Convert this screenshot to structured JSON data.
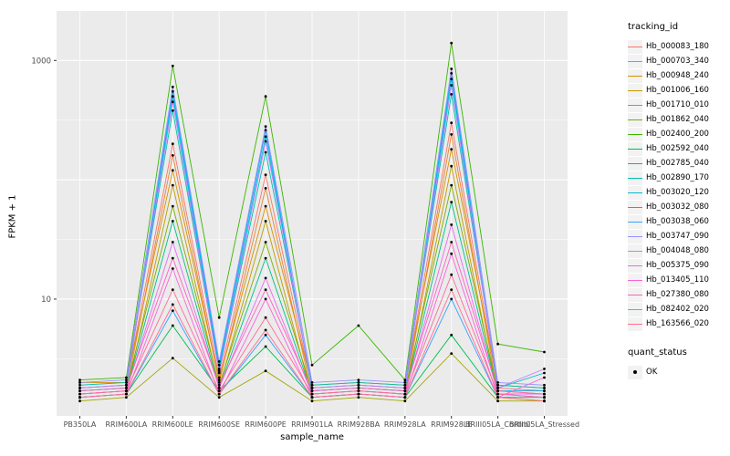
{
  "chart_data": {
    "type": "line",
    "title": "",
    "xlabel": "sample_name",
    "ylabel": "FPKM + 1",
    "y_scale": "log10",
    "ylim": [
      1.05,
      2600
    ],
    "grid": true,
    "panel_bg": "#EBEBEB",
    "grid_color": "#FFFFFF",
    "point_color": "#000000",
    "y_ticks": [
      {
        "value": 1000,
        "label": "1000"
      },
      {
        "value": 10,
        "label": "10"
      }
    ],
    "legend_title": "tracking_id",
    "legend2_title": "quant_status",
    "quant_status": [
      {
        "label": "OK",
        "marker": "point",
        "color": "#000000"
      }
    ],
    "categories": [
      "PB350LA",
      "RRIM600LA",
      "RRIM600LE",
      "RRIM600SE",
      "RRIM600PE",
      "RRIM901LA",
      "RRIM928BA",
      "RRIM928LA",
      "RRIM928LE",
      "BRIII05LA_Control",
      "BRIII05LA_Stressed"
    ],
    "series": [
      {
        "name": "Hb_000083_180",
        "color": "#F8766D",
        "values": [
          1.8,
          1.9,
          200,
          2.2,
          110,
          1.8,
          1.9,
          1.8,
          300,
          1.8,
          1.7
        ]
      },
      {
        "name": "Hb_000703_340",
        "color": "#EA8331",
        "values": [
          1.6,
          1.7,
          160,
          2.0,
          85,
          1.6,
          1.7,
          1.6,
          240,
          1.6,
          1.5
        ]
      },
      {
        "name": "Hb_000948_240",
        "color": "#D89000",
        "values": [
          2.0,
          2.0,
          120,
          2.1,
          60,
          1.9,
          2.0,
          1.9,
          180,
          1.9,
          1.8
        ]
      },
      {
        "name": "Hb_001006_160",
        "color": "#C09B00",
        "values": [
          1.5,
          1.6,
          90,
          1.8,
          45,
          1.5,
          1.6,
          1.5,
          130,
          1.5,
          1.4
        ]
      },
      {
        "name": "Hb_001710_010",
        "color": "#A3A500",
        "values": [
          1.4,
          1.5,
          3.2,
          1.5,
          2.5,
          1.4,
          1.5,
          1.4,
          3.5,
          1.4,
          1.4
        ]
      },
      {
        "name": "Hb_001862_040",
        "color": "#7CAE00",
        "values": [
          1.7,
          1.8,
          60,
          1.9,
          30,
          1.7,
          1.8,
          1.7,
          90,
          1.7,
          1.6
        ]
      },
      {
        "name": "Hb_002400_200",
        "color": "#39B600",
        "values": [
          2.1,
          2.2,
          900,
          7,
          500,
          2.8,
          6,
          2.1,
          1400,
          4.2,
          3.6
        ]
      },
      {
        "name": "Hb_002592_040",
        "color": "#00BB4E",
        "values": [
          1.5,
          1.6,
          6,
          1.7,
          4,
          1.5,
          1.6,
          1.5,
          5,
          1.5,
          1.5
        ]
      },
      {
        "name": "Hb_002785_040",
        "color": "#00C087",
        "values": [
          1.6,
          1.7,
          45,
          1.8,
          22,
          1.6,
          1.7,
          1.6,
          65,
          1.6,
          1.6
        ]
      },
      {
        "name": "Hb_002890_170",
        "color": "#00C0AF",
        "values": [
          1.9,
          2.0,
          380,
          2.5,
          170,
          1.9,
          2.0,
          1.9,
          520,
          1.9,
          1.8
        ]
      },
      {
        "name": "Hb_003020_120",
        "color": "#00BDD0",
        "values": [
          1.8,
          1.9,
          500,
          2.6,
          230,
          1.8,
          1.9,
          1.8,
          700,
          1.8,
          2.4
        ]
      },
      {
        "name": "Hb_003032_080",
        "color": "#00B4EF",
        "values": [
          1.7,
          1.8,
          550,
          2.8,
          260,
          1.7,
          1.8,
          1.7,
          780,
          1.7,
          1.7
        ]
      },
      {
        "name": "Hb_003038_060",
        "color": "#35A2FF",
        "values": [
          1.5,
          1.6,
          8,
          1.6,
          5,
          1.5,
          1.6,
          1.5,
          10,
          1.5,
          1.5
        ]
      },
      {
        "name": "Hb_003747_090",
        "color": "#9590FF",
        "values": [
          2.0,
          2.1,
          600,
          3.0,
          280,
          2.0,
          2.1,
          2.0,
          850,
          2.0,
          1.9
        ]
      },
      {
        "name": "Hb_004048_080",
        "color": "#C77CFF",
        "values": [
          1.8,
          1.9,
          450,
          2.4,
          210,
          1.8,
          1.9,
          1.8,
          620,
          1.8,
          2.6
        ]
      },
      {
        "name": "Hb_005375_090",
        "color": "#E76BF3",
        "values": [
          1.6,
          1.7,
          30,
          1.8,
          15,
          1.6,
          1.7,
          1.6,
          42,
          1.6,
          1.6
        ]
      },
      {
        "name": "Hb_013405_110",
        "color": "#FA62DB",
        "values": [
          1.5,
          1.6,
          18,
          1.6,
          10,
          1.5,
          1.6,
          1.5,
          24,
          1.5,
          2.2
        ]
      },
      {
        "name": "Hb_027380_080",
        "color": "#FF62BC",
        "values": [
          1.7,
          1.8,
          22,
          1.9,
          12,
          1.7,
          1.8,
          1.7,
          30,
          1.7,
          1.6
        ]
      },
      {
        "name": "Hb_082402_020",
        "color": "#FF6A98",
        "values": [
          1.6,
          1.7,
          12,
          1.7,
          7,
          1.6,
          1.7,
          1.6,
          16,
          1.6,
          1.5
        ]
      },
      {
        "name": "Hb_163566_020",
        "color": "#FF6C91",
        "values": [
          1.5,
          1.6,
          9,
          1.6,
          5.5,
          1.5,
          1.6,
          1.5,
          12,
          1.5,
          1.4
        ]
      }
    ]
  }
}
